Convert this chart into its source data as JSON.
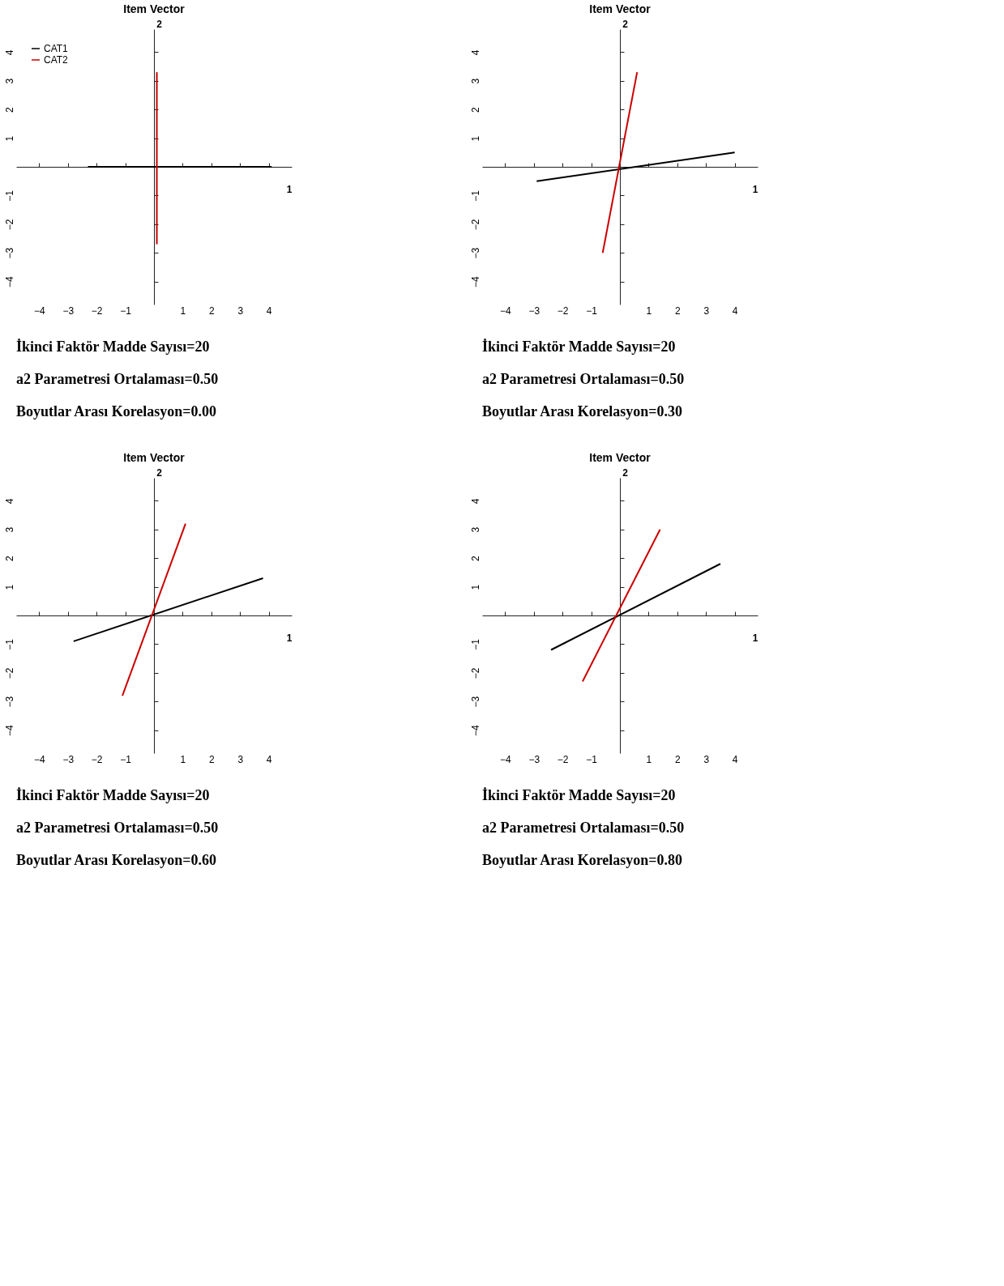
{
  "chart_data": [
    {
      "type": "line",
      "title": "Item Vector",
      "xlabel": "1",
      "ylabel": "2",
      "xlim": [
        -4.8,
        4.8
      ],
      "ylim": [
        -4.8,
        4.8
      ],
      "xticks": [
        -4,
        -3,
        -2,
        -1,
        1,
        2,
        3,
        4
      ],
      "yticks": [
        -4,
        -3,
        -2,
        -1,
        1,
        2,
        3,
        4
      ],
      "grid": false,
      "legend": "top left",
      "series": [
        {
          "name": "CAT1",
          "color": "#000000",
          "x": [
            -2.3,
            4.1
          ],
          "values": [
            0.0,
            0.0
          ]
        },
        {
          "name": "CAT2",
          "color": "#cc0000",
          "x": [
            0.1,
            0.1
          ],
          "values": [
            -2.7,
            3.3
          ]
        }
      ],
      "annotations": [
        "İkinci Faktör Madde Sayısı=20",
        "a2 Parametresi Ortalaması=0.50",
        "Boyutlar Arası Korelasyon=0.00"
      ]
    },
    {
      "type": "line",
      "title": "Item Vector",
      "xlabel": "1",
      "ylabel": "2",
      "xlim": [
        -4.8,
        4.8
      ],
      "ylim": [
        -4.8,
        4.8
      ],
      "xticks": [
        -4,
        -3,
        -2,
        -1,
        1,
        2,
        3,
        4
      ],
      "yticks": [
        -4,
        -3,
        -2,
        -1,
        1,
        2,
        3,
        4
      ],
      "grid": false,
      "legend": "top left",
      "series": [
        {
          "name": "CAT1",
          "color": "#000000",
          "x": [
            -2.9,
            4.0
          ],
          "values": [
            -0.5,
            0.5
          ]
        },
        {
          "name": "CAT2",
          "color": "#cc0000",
          "x": [
            -0.6,
            0.6
          ],
          "values": [
            -3.0,
            3.3
          ]
        }
      ],
      "annotations": [
        "İkinci Faktör Madde Sayısı=20",
        "a2 Parametresi Ortalaması=0.50",
        "Boyutlar Arası Korelasyon=0.30"
      ]
    },
    {
      "type": "line",
      "title": "Item Vector",
      "xlabel": "1",
      "ylabel": "2",
      "xlim": [
        -4.8,
        4.8
      ],
      "ylim": [
        -4.8,
        4.8
      ],
      "xticks": [
        -4,
        -3,
        -2,
        -1,
        1,
        2,
        3,
        4
      ],
      "yticks": [
        -4,
        -3,
        -2,
        -1,
        1,
        2,
        3,
        4
      ],
      "grid": false,
      "legend": "top left",
      "series": [
        {
          "name": "CAT1",
          "color": "#000000",
          "x": [
            -2.8,
            3.8
          ],
          "values": [
            -0.9,
            1.3
          ]
        },
        {
          "name": "CAT2",
          "color": "#cc0000",
          "x": [
            -1.1,
            1.1
          ],
          "values": [
            -2.8,
            3.2
          ]
        }
      ],
      "annotations": [
        "İkinci Faktör Madde Sayısı=20",
        "a2 Parametresi Ortalaması=0.50",
        "Boyutlar Arası Korelasyon=0.60"
      ]
    },
    {
      "type": "line",
      "title": "Item Vector",
      "xlabel": "1",
      "ylabel": "2",
      "xlim": [
        -4.8,
        4.8
      ],
      "ylim": [
        -4.8,
        4.8
      ],
      "xticks": [
        -4,
        -3,
        -2,
        -1,
        1,
        2,
        3,
        4
      ],
      "yticks": [
        -4,
        -3,
        -2,
        -1,
        1,
        2,
        3,
        4
      ],
      "grid": false,
      "legend": "top left",
      "series": [
        {
          "name": "CAT1",
          "color": "#000000",
          "x": [
            -2.4,
            3.5
          ],
          "values": [
            -1.2,
            1.8
          ]
        },
        {
          "name": "CAT2",
          "color": "#cc0000",
          "x": [
            -1.3,
            1.4
          ],
          "values": [
            -2.3,
            3.0
          ]
        }
      ],
      "annotations": [
        "İkinci Faktör Madde Sayısı=20",
        "a2 Parametresi Ortalaması=0.50",
        "Boyutlar Arası Korelasyon=0.80"
      ]
    }
  ]
}
